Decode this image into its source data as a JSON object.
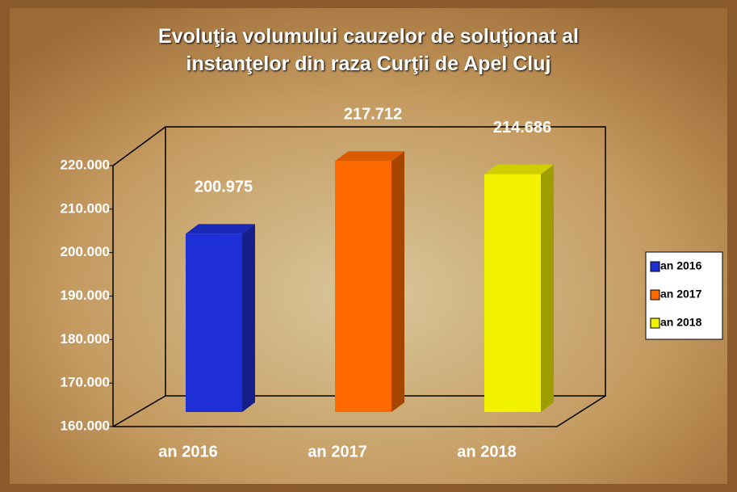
{
  "chart_data": {
    "type": "bar",
    "title": "Evoluţia volumului cauzelor de soluţionat al\ninstanţelor din raza Curţii de Apel Cluj",
    "categories": [
      "an 2016",
      "an 2017",
      "an 2018"
    ],
    "series": [
      {
        "name": "an 2016",
        "color": "#1f2fd6",
        "values": [
          200975,
          null,
          null
        ],
        "value_labels": [
          "200.975",
          null,
          null
        ]
      },
      {
        "name": "an 2017",
        "color": "#ff6a00",
        "values": [
          null,
          217712,
          null
        ],
        "value_labels": [
          null,
          "217.712",
          null
        ]
      },
      {
        "name": "an 2018",
        "color": "#f2f200",
        "values": [
          null,
          null,
          214686
        ],
        "value_labels": [
          null,
          null,
          "214.686"
        ]
      }
    ],
    "ylim": [
      160000,
      220000
    ],
    "yticks": [
      {
        "value": 160000,
        "label": "160.000"
      },
      {
        "value": 170000,
        "label": "170.000"
      },
      {
        "value": 180000,
        "label": "180.000"
      },
      {
        "value": 190000,
        "label": "190.000"
      },
      {
        "value": 200000,
        "label": "200.000"
      },
      {
        "value": 210000,
        "label": "210.000"
      },
      {
        "value": 220000,
        "label": "220.000"
      }
    ],
    "legend": "right"
  }
}
